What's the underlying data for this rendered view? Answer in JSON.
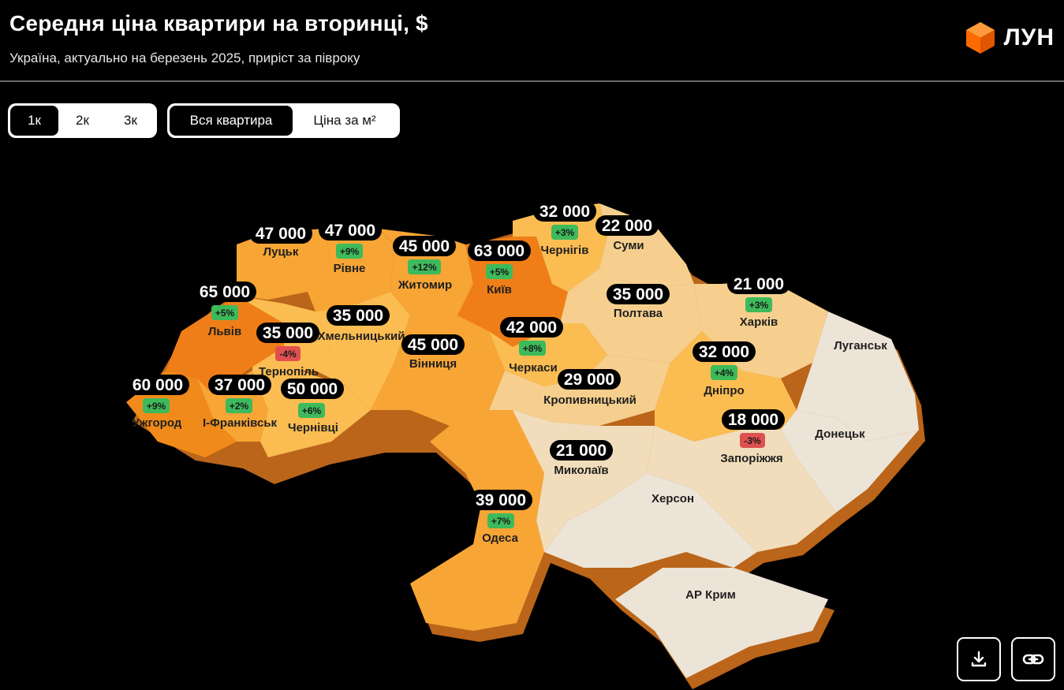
{
  "header": {
    "title": "Середня ціна квартири на вторинці, $",
    "subtitle": "Україна, актуально на березень 2025, приріст за півроку",
    "logo_text": "ЛУН"
  },
  "controls": {
    "rooms": [
      {
        "label": "1к",
        "active": true
      },
      {
        "label": "2к",
        "active": false
      },
      {
        "label": "3к",
        "active": false
      }
    ],
    "mode": [
      {
        "label": "Вся квартира",
        "active": true
      },
      {
        "label": "Ціна за м²",
        "active": false
      }
    ]
  },
  "actions": {
    "download_icon": "download-icon",
    "link_icon": "link-icon"
  },
  "colors": {
    "accent": "#ff7a1a",
    "dark_orange": "#f08a1a",
    "orange": "#f7a535",
    "light_orange": "#fbbd52",
    "peach": "#f6cf8e",
    "cream": "#f1ddbb",
    "occupied": "#ece4d6",
    "positive": "#3dba5b",
    "negative": "#e05050"
  },
  "regions": [
    {
      "name": "Луцьк",
      "price": "47 000",
      "change": "",
      "trend": ""
    },
    {
      "name": "Рівне",
      "price": "47 000",
      "change": "+9%",
      "trend": "up"
    },
    {
      "name": "Житомир",
      "price": "45 000",
      "change": "+12%",
      "trend": "up"
    },
    {
      "name": "Київ",
      "price": "63 000",
      "change": "+5%",
      "trend": "up"
    },
    {
      "name": "Чернігів",
      "price": "32 000",
      "change": "+3%",
      "trend": "up"
    },
    {
      "name": "Суми",
      "price": "22 000",
      "change": "",
      "trend": ""
    },
    {
      "name": "Львів",
      "price": "65 000",
      "change": "+5%",
      "trend": "up"
    },
    {
      "name": "Тернопіль",
      "price": "35 000",
      "change": "-4%",
      "trend": "down"
    },
    {
      "name": "Хмельницький",
      "price": "35 000",
      "change": "",
      "trend": ""
    },
    {
      "name": "Вінниця",
      "price": "45 000",
      "change": "",
      "trend": ""
    },
    {
      "name": "Черкаси",
      "price": "42 000",
      "change": "+8%",
      "trend": "up"
    },
    {
      "name": "Полтава",
      "price": "35 000",
      "change": "",
      "trend": ""
    },
    {
      "name": "Харків",
      "price": "21 000",
      "change": "+3%",
      "trend": "up"
    },
    {
      "name": "Дніпро",
      "price": "32 000",
      "change": "+4%",
      "trend": "up"
    },
    {
      "name": "Кропивницький",
      "price": "29 000",
      "change": "",
      "trend": ""
    },
    {
      "name": "Ужгород",
      "price": "60 000",
      "change": "+9%",
      "trend": "up"
    },
    {
      "name": "І-Франківськ",
      "price": "37 000",
      "change": "+2%",
      "trend": "up"
    },
    {
      "name": "Чернівці",
      "price": "50 000",
      "change": "+6%",
      "trend": "up"
    },
    {
      "name": "Запоріжжя",
      "price": "18 000",
      "change": "-3%",
      "trend": "down"
    },
    {
      "name": "Миколаїв",
      "price": "21 000",
      "change": "",
      "trend": ""
    },
    {
      "name": "Одеса",
      "price": "39 000",
      "change": "+7%",
      "trend": "up"
    },
    {
      "name": "Луганськ",
      "price": "",
      "change": "",
      "trend": ""
    },
    {
      "name": "Донецьк",
      "price": "",
      "change": "",
      "trend": ""
    },
    {
      "name": "Херсон",
      "price": "",
      "change": "",
      "trend": ""
    },
    {
      "name": "АР Крим",
      "price": "",
      "change": "",
      "trend": ""
    }
  ]
}
